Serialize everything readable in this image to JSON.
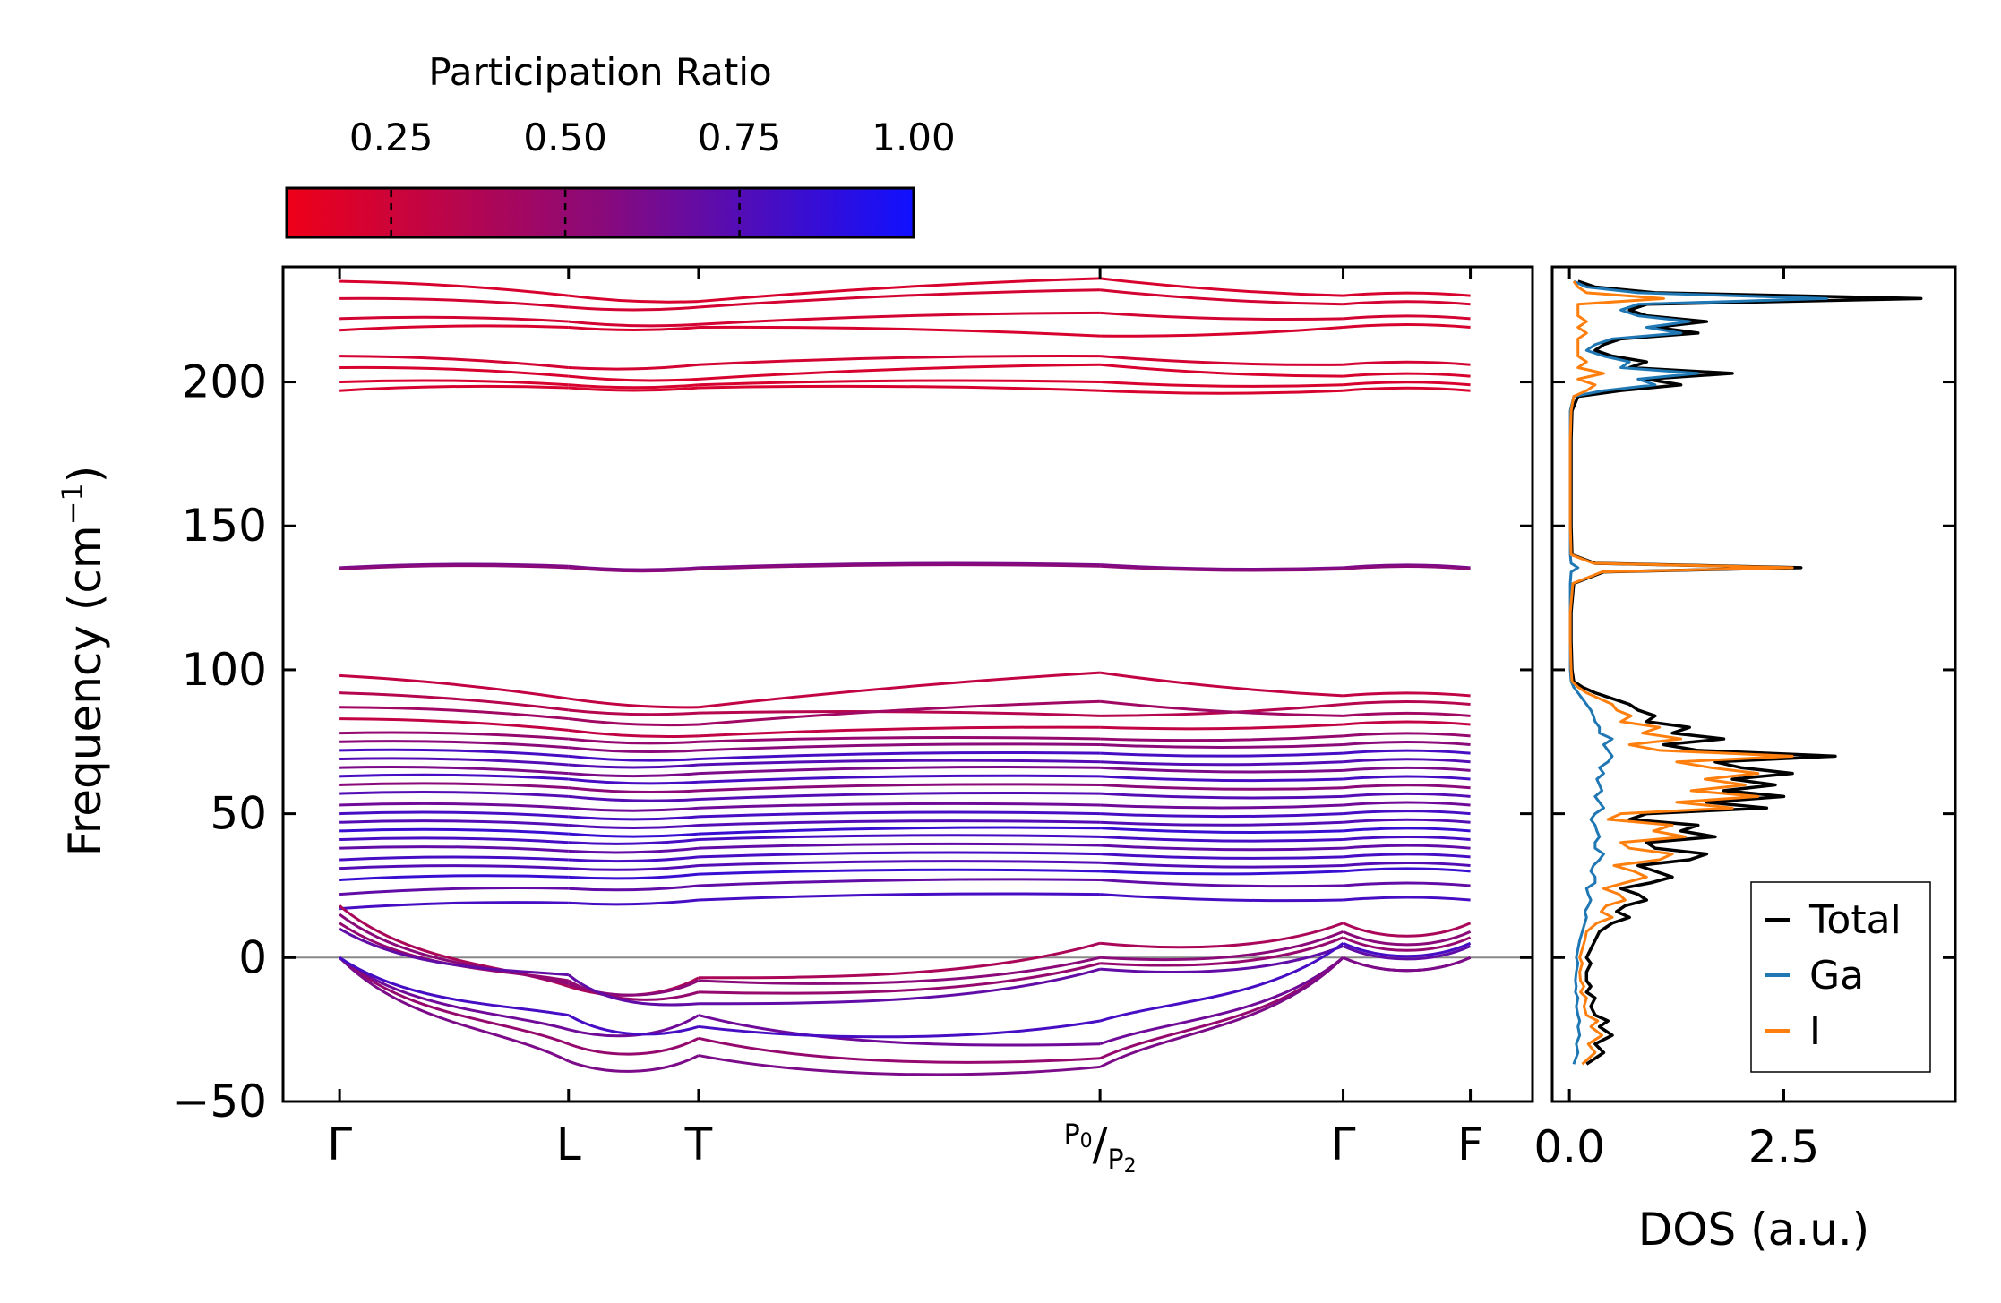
{
  "colors": {
    "pr_low": "#ee0018",
    "pr_mid": "#8a0a7a",
    "pr_high": "#1010ff",
    "total": "#000000",
    "ga": "#1f77b4",
    "i": "#ff7f0e",
    "zero_line": "#888888"
  },
  "chart_data": [
    {
      "type": "line",
      "name": "phonon-band-structure",
      "title": "",
      "xlabel": "",
      "ylabel": "Frequency (cm⁻¹)",
      "ylabel_base": "Frequency (cm",
      "ylabel_sup": "−1",
      "ylabel_end": ")",
      "ylim": [
        -50,
        240
      ],
      "yticks": [
        -50,
        0,
        50,
        100,
        150,
        200
      ],
      "ytick_labels": [
        "−50",
        "0",
        "50",
        "100",
        "150",
        "200"
      ],
      "xlim": [
        -0.2,
        4.22
      ],
      "kpoints": [
        {
          "label": "Γ",
          "x": 0.0
        },
        {
          "label": "L",
          "x": 0.81
        },
        {
          "label": "T",
          "x": 1.27
        },
        {
          "label": "P₀/P₂",
          "label_main": "P",
          "label_sub1": "0",
          "label_sep": "/",
          "label_main2": "P",
          "label_sub2": "2",
          "x": 2.69
        },
        {
          "label": "Γ",
          "x": 3.55
        },
        {
          "label": "F",
          "x": 4.0
        }
      ],
      "colorbar": {
        "label": "Participation Ratio",
        "range": [
          0.1,
          1.0
        ],
        "ticks": [
          0.25,
          0.5,
          0.75,
          1.0
        ],
        "tick_labels": [
          "0.25",
          "0.50",
          "0.75",
          "1.00"
        ]
      },
      "segment_bounds": [
        0.0,
        0.81,
        1.27,
        2.69,
        3.55,
        4.0
      ],
      "bands_segment_constant": [
        {
          "values": [
            235,
            230,
            228,
            236,
            230
          ],
          "pr": 0.2
        },
        {
          "values": [
            229,
            226,
            226,
            232,
            227
          ],
          "pr": 0.22
        },
        {
          "values": [
            222,
            221,
            220,
            224,
            222
          ],
          "pr": 0.22
        },
        {
          "values": [
            218,
            219,
            219,
            216,
            219
          ],
          "pr": 0.2
        },
        {
          "values": [
            209,
            205,
            206,
            209,
            206
          ],
          "pr": 0.22
        },
        {
          "values": [
            205,
            202,
            201,
            206,
            202
          ],
          "pr": 0.2
        },
        {
          "values": [
            200,
            199,
            199,
            200,
            199
          ],
          "pr": 0.2
        },
        {
          "values": [
            197,
            198,
            198,
            197,
            197
          ],
          "pr": 0.2
        },
        {
          "values": [
            135.5,
            136,
            135.5,
            136.5,
            135.5
          ],
          "pr": 0.6
        },
        {
          "values": [
            135,
            135.5,
            135,
            136,
            135
          ],
          "pr": 0.55
        },
        {
          "values": [
            98,
            90,
            87,
            99,
            91
          ],
          "pr": 0.3
        },
        {
          "values": [
            92,
            86,
            85,
            84,
            88
          ],
          "pr": 0.35
        },
        {
          "values": [
            87,
            83,
            81,
            89,
            84
          ],
          "pr": 0.45
        },
        {
          "values": [
            83,
            79,
            77,
            80,
            81
          ],
          "pr": 0.3
        },
        {
          "values": [
            78,
            76,
            75,
            76,
            77
          ],
          "pr": 0.5
        },
        {
          "values": [
            75,
            73,
            72,
            74,
            74
          ],
          "pr": 0.55
        },
        {
          "values": [
            72,
            70,
            69,
            71,
            71
          ],
          "pr": 0.8
        },
        {
          "values": [
            69,
            67,
            67,
            68,
            68
          ],
          "pr": 0.75
        },
        {
          "values": [
            66,
            64,
            64,
            66,
            65
          ],
          "pr": 0.6
        },
        {
          "values": [
            63,
            62,
            61,
            63,
            62
          ],
          "pr": 0.8
        },
        {
          "values": [
            60,
            59,
            58,
            60,
            59
          ],
          "pr": 0.55
        },
        {
          "values": [
            57,
            56,
            55,
            57,
            56
          ],
          "pr": 0.75
        },
        {
          "values": [
            53,
            52,
            52,
            53,
            53
          ],
          "pr": 0.65
        },
        {
          "values": [
            50,
            49,
            49,
            50,
            50
          ],
          "pr": 0.8
        },
        {
          "values": [
            47,
            46,
            46,
            47,
            47
          ],
          "pr": 0.75
        },
        {
          "values": [
            44,
            43,
            43,
            45,
            44
          ],
          "pr": 0.85
        },
        {
          "values": [
            41,
            40,
            41,
            42,
            41
          ],
          "pr": 0.8
        },
        {
          "values": [
            38,
            37,
            38,
            39,
            38
          ],
          "pr": 0.7
        },
        {
          "values": [
            34,
            34,
            35,
            36,
            35
          ],
          "pr": 0.8
        },
        {
          "values": [
            31,
            31,
            32,
            33,
            32
          ],
          "pr": 0.75
        },
        {
          "values": [
            27,
            28,
            29,
            30,
            30
          ],
          "pr": 0.85
        },
        {
          "values": [
            22,
            24,
            25,
            27,
            25
          ],
          "pr": 0.7
        },
        {
          "values": [
            17,
            19,
            20,
            22,
            20
          ],
          "pr": 0.8
        }
      ],
      "bands_low": [
        {
          "values": [
            18,
            -10,
            -7,
            5,
            12
          ],
          "pr": 0.4
        },
        {
          "values": [
            15,
            -9,
            -8,
            0,
            9
          ],
          "pr": 0.55
        },
        {
          "values": [
            12,
            -8,
            -12,
            -2,
            7
          ],
          "pr": 0.5
        },
        {
          "values": [
            10,
            -6,
            -16,
            -4,
            4
          ],
          "pr": 0.7
        },
        {
          "values": [
            0,
            -25,
            -20,
            -30,
            0
          ],
          "pr": 0.65
        },
        {
          "values": [
            0,
            -30,
            -28,
            -35,
            0
          ],
          "pr": 0.5
        },
        {
          "values": [
            0,
            -36,
            -34,
            -38,
            0
          ],
          "pr": 0.6
        },
        {
          "values": [
            0,
            -20,
            -24,
            -22,
            5
          ],
          "pr": 0.8
        }
      ]
    },
    {
      "type": "line",
      "name": "density-of-states",
      "xlabel": "DOS (a.u.)",
      "ylabel": "",
      "xlim": [
        -0.2,
        4.5
      ],
      "ylim": [
        -50,
        240
      ],
      "xticks": [
        0.0,
        2.5
      ],
      "xtick_labels": [
        "0.0",
        "2.5"
      ],
      "legend": {
        "position": "bottom-right",
        "entries": [
          "Total",
          "Ga",
          "I"
        ]
      },
      "series": [
        {
          "name": "Total",
          "y": [
            -37,
            -33,
            -30,
            -27,
            -24,
            -22,
            -20,
            -17,
            -14,
            -12,
            -10,
            -8,
            -5,
            -2,
            0,
            3,
            6,
            9,
            12,
            14,
            16,
            18,
            20,
            22,
            24,
            26,
            28,
            30,
            32,
            34,
            36,
            38,
            40,
            42,
            44,
            46,
            48,
            50,
            52,
            54,
            56,
            58,
            60,
            62,
            64,
            66,
            68,
            70,
            72,
            74,
            76,
            78,
            80,
            82,
            84,
            86,
            88,
            90,
            92,
            94,
            96,
            100,
            110,
            120,
            130,
            134,
            135.5,
            137,
            140,
            150,
            160,
            170,
            180,
            190,
            195,
            197,
            199,
            201,
            203,
            205,
            207,
            209,
            211,
            213,
            215,
            217,
            219,
            221,
            223,
            225,
            227,
            229,
            231,
            233,
            235
          ],
          "value": [
            0.2,
            0.4,
            0.3,
            0.5,
            0.35,
            0.45,
            0.3,
            0.25,
            0.3,
            0.2,
            0.25,
            0.2,
            0.2,
            0.25,
            0.2,
            0.25,
            0.3,
            0.35,
            0.5,
            0.7,
            0.55,
            0.65,
            0.9,
            0.8,
            0.6,
            0.95,
            1.2,
            1.0,
            0.8,
            1.4,
            1.6,
            1.0,
            0.9,
            1.7,
            1.3,
            1.5,
            0.7,
            0.9,
            2.3,
            1.6,
            2.5,
            1.8,
            2.4,
            1.9,
            2.6,
            2.0,
            1.7,
            3.1,
            1.5,
            1.1,
            1.8,
            1.2,
            1.4,
            0.9,
            1.0,
            0.8,
            0.7,
            0.5,
            0.3,
            0.15,
            0.05,
            0.03,
            0.02,
            0.02,
            0.05,
            0.4,
            2.7,
            0.3,
            0.03,
            0.02,
            0.02,
            0.02,
            0.02,
            0.03,
            0.1,
            0.6,
            1.3,
            0.9,
            1.9,
            0.7,
            0.9,
            0.5,
            0.3,
            0.4,
            0.6,
            1.5,
            1.0,
            1.6,
            0.9,
            0.7,
            0.9,
            4.1,
            1.0,
            0.3,
            0.1
          ]
        },
        {
          "name": "Ga",
          "y": [
            -37,
            -33,
            -30,
            -27,
            -24,
            -22,
            -20,
            -17,
            -14,
            -12,
            -10,
            -8,
            -5,
            -2,
            0,
            3,
            6,
            9,
            12,
            14,
            16,
            18,
            20,
            22,
            24,
            26,
            28,
            30,
            32,
            34,
            36,
            38,
            40,
            42,
            44,
            46,
            48,
            50,
            52,
            54,
            56,
            58,
            60,
            62,
            64,
            66,
            68,
            70,
            72,
            74,
            76,
            78,
            80,
            82,
            84,
            86,
            88,
            90,
            92,
            94,
            96,
            100,
            110,
            120,
            130,
            134,
            135.5,
            137,
            140,
            150,
            160,
            170,
            180,
            190,
            195,
            197,
            199,
            201,
            203,
            205,
            207,
            209,
            211,
            213,
            215,
            217,
            219,
            221,
            223,
            225,
            227,
            229,
            231,
            233,
            235
          ],
          "value": [
            0.05,
            0.1,
            0.08,
            0.12,
            0.1,
            0.12,
            0.1,
            0.08,
            0.1,
            0.07,
            0.08,
            0.07,
            0.08,
            0.1,
            0.08,
            0.1,
            0.12,
            0.15,
            0.18,
            0.2,
            0.18,
            0.22,
            0.25,
            0.22,
            0.2,
            0.3,
            0.3,
            0.25,
            0.28,
            0.35,
            0.4,
            0.3,
            0.3,
            0.35,
            0.32,
            0.3,
            0.25,
            0.3,
            0.4,
            0.35,
            0.3,
            0.38,
            0.35,
            0.32,
            0.4,
            0.35,
            0.45,
            0.5,
            0.45,
            0.4,
            0.5,
            0.35,
            0.35,
            0.3,
            0.28,
            0.25,
            0.2,
            0.15,
            0.1,
            0.05,
            0.02,
            0.01,
            0.01,
            0.01,
            0.01,
            0.02,
            0.1,
            0.02,
            0.01,
            0.01,
            0.01,
            0.01,
            0.01,
            0.01,
            0.05,
            0.4,
            1.0,
            0.8,
            1.5,
            0.6,
            0.7,
            0.4,
            0.2,
            0.3,
            0.5,
            1.3,
            0.9,
            1.4,
            0.8,
            0.6,
            0.8,
            3.0,
            0.8,
            0.2,
            0.05
          ]
        },
        {
          "name": "I",
          "y": [
            -37,
            -33,
            -30,
            -27,
            -24,
            -22,
            -20,
            -17,
            -14,
            -12,
            -10,
            -8,
            -5,
            -2,
            0,
            3,
            6,
            9,
            12,
            14,
            16,
            18,
            20,
            22,
            24,
            26,
            28,
            30,
            32,
            34,
            36,
            38,
            40,
            42,
            44,
            46,
            48,
            50,
            52,
            54,
            56,
            58,
            60,
            62,
            64,
            66,
            68,
            70,
            72,
            74,
            76,
            78,
            80,
            82,
            84,
            86,
            88,
            90,
            92,
            94,
            96,
            100,
            110,
            120,
            130,
            134,
            135.5,
            137,
            140,
            150,
            160,
            170,
            180,
            190,
            195,
            197,
            199,
            201,
            203,
            205,
            207,
            209,
            211,
            213,
            215,
            217,
            219,
            221,
            223,
            225,
            227,
            229,
            231,
            233,
            235
          ],
          "value": [
            0.15,
            0.3,
            0.22,
            0.38,
            0.25,
            0.33,
            0.2,
            0.17,
            0.2,
            0.13,
            0.17,
            0.13,
            0.12,
            0.15,
            0.12,
            0.15,
            0.18,
            0.2,
            0.32,
            0.5,
            0.37,
            0.43,
            0.65,
            0.58,
            0.4,
            0.65,
            0.9,
            0.75,
            0.52,
            1.05,
            1.2,
            0.7,
            0.6,
            1.35,
            0.98,
            1.2,
            0.45,
            0.6,
            1.9,
            1.25,
            2.2,
            1.42,
            2.05,
            1.58,
            2.2,
            1.65,
            1.25,
            2.6,
            1.05,
            0.7,
            1.3,
            0.85,
            1.05,
            0.6,
            0.72,
            0.55,
            0.5,
            0.35,
            0.2,
            0.1,
            0.03,
            0.02,
            0.01,
            0.01,
            0.04,
            0.38,
            2.6,
            0.28,
            0.02,
            0.01,
            0.01,
            0.01,
            0.01,
            0.02,
            0.05,
            0.2,
            0.3,
            0.1,
            0.4,
            0.1,
            0.2,
            0.1,
            0.1,
            0.1,
            0.1,
            0.2,
            0.1,
            0.2,
            0.1,
            0.1,
            0.1,
            1.1,
            0.2,
            0.1,
            0.05
          ]
        }
      ]
    }
  ]
}
